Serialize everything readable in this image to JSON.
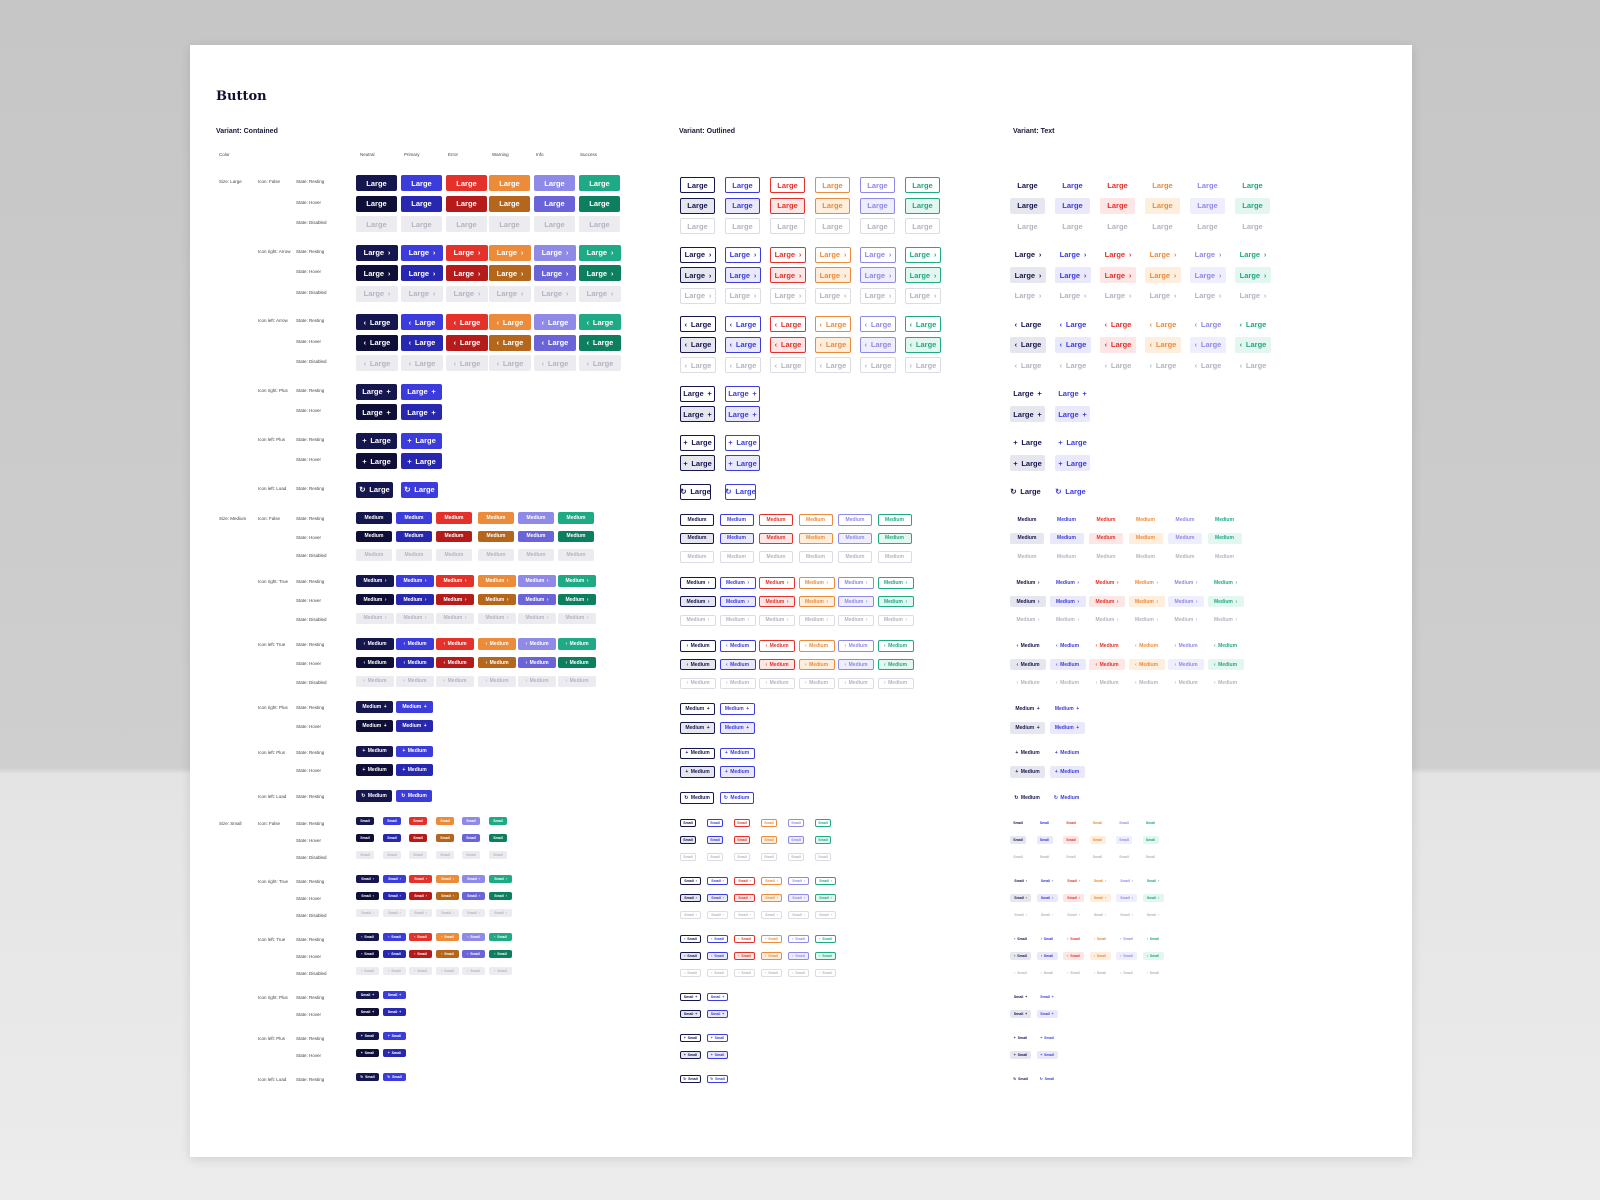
{
  "title": "Button",
  "variants": [
    "Variant: Contained",
    "Variant: Outlined",
    "Variant: Text"
  ],
  "header": {
    "color_label": "Color",
    "colors": [
      "Neutral",
      "Primary",
      "Error",
      "Warning",
      "Info",
      "Success"
    ]
  },
  "palette": {
    "resting": [
      "#16164f",
      "#3c3cdc",
      "#e4322b",
      "#ec8b3a",
      "#8f8ae8",
      "#1eaa84"
    ],
    "hover": [
      "#0e0e36",
      "#2727b0",
      "#b51b1b",
      "#b4661d",
      "#6a64d8",
      "#0d7e5e"
    ],
    "text": [
      "#16164f",
      "#3c3cdc",
      "#e4322b",
      "#ec8b3a",
      "#8f8ae8",
      "#1eaa84"
    ],
    "hover_bg": [
      "#e6e6ee",
      "#e9e9fb",
      "#fde6e6",
      "#fdeedd",
      "#efeefc",
      "#e4f6f0"
    ],
    "disabled_bg": "#ececf0",
    "disabled_text": "#b4b4c0"
  },
  "sizes": [
    {
      "name": "Size: Large",
      "label": "Large",
      "groups": [
        {
          "icon": "Icon: False",
          "type": "none",
          "states": [
            "State: Resting",
            "State: Hover",
            "State: Disabled"
          ],
          "count": 6
        },
        {
          "icon": "Icon right: Arrow",
          "type": "right-arrow",
          "states": [
            "State: Resting",
            "State: Hover",
            "State: Disabled"
          ],
          "count": 6
        },
        {
          "icon": "Icon left: Arrow",
          "type": "left-arrow",
          "states": [
            "State: Resting",
            "State: Hover",
            "State: Disabled"
          ],
          "count": 6
        },
        {
          "icon": "Icon right: Plus",
          "type": "right-plus",
          "states": [
            "State: Resting",
            "State: Hover"
          ],
          "count": 2
        },
        {
          "icon": "Icon left: Plus",
          "type": "left-plus",
          "states": [
            "State: Resting",
            "State: Hover"
          ],
          "count": 2
        },
        {
          "icon": "Icon left: Load",
          "type": "left-load",
          "states": [
            "State: Resting"
          ],
          "count": 2
        }
      ]
    },
    {
      "name": "Size: Medium",
      "label": "Medium",
      "groups": [
        {
          "icon": "Icon: False",
          "type": "none",
          "states": [
            "State: Resting",
            "State: Hover",
            "State: Disabled"
          ],
          "count": 6
        },
        {
          "icon": "Icon right: True",
          "type": "right-arrow",
          "states": [
            "State: Resting",
            "State: Hover",
            "State: Disabled"
          ],
          "count": 6
        },
        {
          "icon": "Icon left: True",
          "type": "left-arrow",
          "states": [
            "State: Resting",
            "State: Hover",
            "State: Disabled"
          ],
          "count": 6
        },
        {
          "icon": "Icon right: Plus",
          "type": "right-plus",
          "states": [
            "State: Resting",
            "State: Hover"
          ],
          "count": 2
        },
        {
          "icon": "Icon left: Plus",
          "type": "left-plus",
          "states": [
            "State: Resting",
            "State: Hover"
          ],
          "count": 2
        },
        {
          "icon": "Icon left: Load",
          "type": "left-load",
          "states": [
            "State: Resting"
          ],
          "count": 2
        }
      ]
    },
    {
      "name": "Size: Small",
      "label": "Small",
      "groups": [
        {
          "icon": "Icon: False",
          "type": "none",
          "states": [
            "State: Resting",
            "State: Hover",
            "State: Disabled"
          ],
          "count": 6
        },
        {
          "icon": "Icon right: True",
          "type": "right-arrow",
          "states": [
            "State: Resting",
            "State: Hover",
            "State: Disabled"
          ],
          "count": 6
        },
        {
          "icon": "Icon left: True",
          "type": "left-arrow",
          "states": [
            "State: Resting",
            "State: Hover",
            "State: Disabled"
          ],
          "count": 6
        },
        {
          "icon": "Icon right: Plus",
          "type": "right-plus",
          "states": [
            "State: Resting",
            "State: Hover"
          ],
          "count": 2
        },
        {
          "icon": "Icon left: Plus",
          "type": "left-plus",
          "states": [
            "State: Resting",
            "State: Hover"
          ],
          "count": 2
        },
        {
          "icon": "Icon left: Load",
          "type": "left-load",
          "states": [
            "State: Resting"
          ],
          "count": 2
        }
      ]
    }
  ],
  "icons": {
    "right-arrow": "chevron-right-icon",
    "left-arrow": "chevron-left-icon",
    "right-plus": "plus-icon",
    "left-plus": "plus-icon",
    "left-load": "loading-icon"
  },
  "glyphs": {
    "right-arrow": "›",
    "left-arrow": "‹",
    "right-plus": "+",
    "left-plus": "+",
    "left-load": "↻"
  }
}
